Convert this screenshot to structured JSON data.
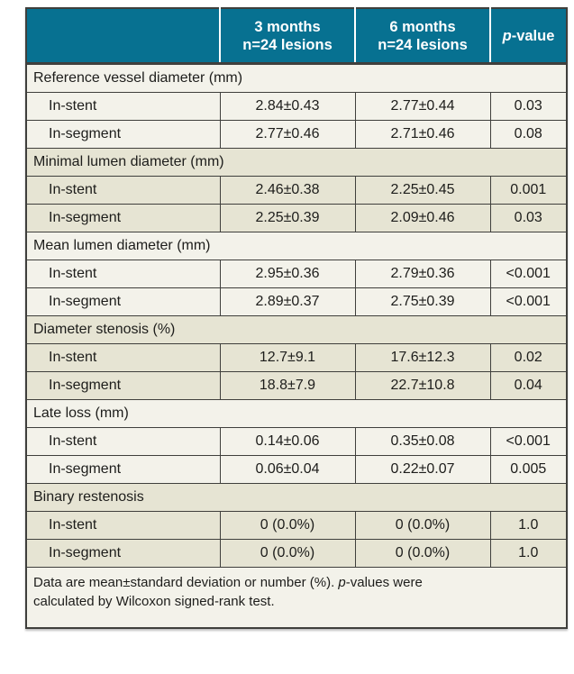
{
  "colors": {
    "teal": "#077191",
    "light_row": "#f3f2ea",
    "dark_row": "#e6e4d3",
    "border": "#3f3f3c",
    "text": "#1d1d1b",
    "header_text": "#ffffff"
  },
  "header": {
    "columns": [
      {
        "line1": "3 months",
        "line2": "n=24 lesions"
      },
      {
        "line1": "6 months",
        "line2": "n=24 lesions"
      }
    ],
    "pvalue": {
      "p_italic": "p",
      "rest": "-value"
    }
  },
  "sections": [
    {
      "title": "Reference vessel diameter (mm)",
      "shade": "light",
      "rows": [
        {
          "label": "In-stent",
          "m3": "2.84±0.43",
          "m6": "2.77±0.44",
          "p": "0.03"
        },
        {
          "label": "In-segment",
          "m3": "2.77±0.46",
          "m6": "2.71±0.46",
          "p": "0.08"
        }
      ]
    },
    {
      "title": "Minimal lumen diameter (mm)",
      "shade": "dark",
      "rows": [
        {
          "label": "In-stent",
          "m3": "2.46±0.38",
          "m6": "2.25±0.45",
          "p": "0.001"
        },
        {
          "label": "In-segment",
          "m3": "2.25±0.39",
          "m6": "2.09±0.46",
          "p": "0.03"
        }
      ]
    },
    {
      "title": "Mean lumen diameter (mm)",
      "shade": "light",
      "rows": [
        {
          "label": "In-stent",
          "m3": "2.95±0.36",
          "m6": "2.79±0.36",
          "p": "<0.001"
        },
        {
          "label": "In-segment",
          "m3": "2.89±0.37",
          "m6": "2.75±0.39",
          "p": "<0.001"
        }
      ]
    },
    {
      "title": "Diameter stenosis (%)",
      "shade": "dark",
      "rows": [
        {
          "label": "In-stent",
          "m3": "12.7±9.1",
          "m6": "17.6±12.3",
          "p": "0.02"
        },
        {
          "label": "In-segment",
          "m3": "18.8±7.9",
          "m6": "22.7±10.8",
          "p": "0.04"
        }
      ]
    },
    {
      "title": "Late loss (mm)",
      "shade": "light",
      "rows": [
        {
          "label": "In-stent",
          "m3": "0.14±0.06",
          "m6": "0.35±0.08",
          "p": "<0.001"
        },
        {
          "label": "In-segment",
          "m3": "0.06±0.04",
          "m6": "0.22±0.07",
          "p": "0.005"
        }
      ]
    },
    {
      "title": "Binary restenosis",
      "shade": "dark",
      "rows": [
        {
          "label": "In-stent",
          "m3": "0 (0.0%)",
          "m6": "0 (0.0%)",
          "p": "1.0"
        },
        {
          "label": "In-segment",
          "m3": "0 (0.0%)",
          "m6": "0 (0.0%)",
          "p": "1.0"
        }
      ]
    }
  ],
  "footnote": {
    "part1": "Data are mean±standard deviation or number (%). ",
    "p_italic": "p",
    "part2": "-values were calculated by Wilcoxon signed-rank test."
  }
}
